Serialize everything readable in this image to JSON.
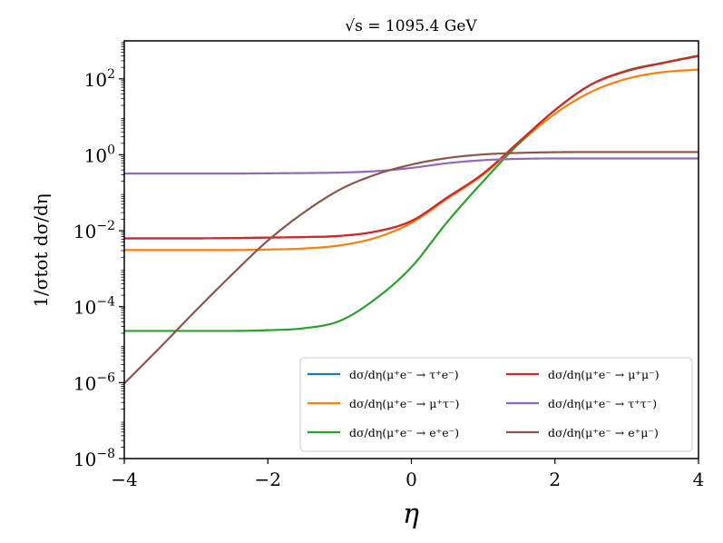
{
  "chart_data": {
    "type": "line",
    "title": "√s = 1095.4 GeV",
    "xlabel": "η",
    "ylabel": "1/σtot dσ/dη",
    "yscale": "log",
    "xlim": [
      -4,
      4
    ],
    "ylim": [
      1e-08,
      1000
    ],
    "x_ticks": [
      -4,
      -2,
      0,
      2,
      4
    ],
    "x_tick_labels": [
      "−4",
      "−2",
      "0",
      "2",
      "4"
    ],
    "y_ticks": [
      1e-08,
      1e-06,
      0.0001,
      0.01,
      1,
      100
    ],
    "y_tick_labels": [
      {
        "base": "10",
        "exp": "−8"
      },
      {
        "base": "10",
        "exp": "−6"
      },
      {
        "base": "10",
        "exp": "−4"
      },
      {
        "base": "10",
        "exp": "−2"
      },
      {
        "base": "10",
        "exp": "0"
      },
      {
        "base": "10",
        "exp": "2"
      }
    ],
    "grid": false,
    "legend_position": "lower-right",
    "x": [
      -4.0,
      -3.5,
      -3.0,
      -2.5,
      -2.0,
      -1.5,
      -1.0,
      -0.5,
      0.0,
      0.5,
      1.0,
      1.5,
      2.0,
      2.5,
      3.0,
      3.5,
      4.0
    ],
    "series": [
      {
        "name": "dσ/dη(μ⁺e⁻ → τ⁺e⁻)",
        "color": "#1f77b4",
        "values": [
          0.0063,
          0.0063,
          0.0063,
          0.0064,
          0.0066,
          0.0068,
          0.0073,
          0.0095,
          0.018,
          0.075,
          0.32,
          2.2,
          15,
          70,
          160,
          260,
          400
        ]
      },
      {
        "name": "dσ/dη(μ⁺e⁻ → μ⁺τ⁻)",
        "color": "#ff7f0e",
        "values": [
          0.0031,
          0.0031,
          0.0031,
          0.0031,
          0.0032,
          0.0034,
          0.0041,
          0.0065,
          0.016,
          0.07,
          0.3,
          2.0,
          12,
          45,
          100,
          150,
          175
        ]
      },
      {
        "name": "dσ/dη(μ⁺e⁻ → e⁺e⁻)",
        "color": "#2ca02c",
        "values": [
          2.3e-05,
          2.3e-05,
          2.3e-05,
          2.3e-05,
          2.4e-05,
          2.7e-05,
          4.2e-05,
          0.00016,
          0.0011,
          0.017,
          0.2,
          2.0,
          15,
          70,
          165,
          265,
          410
        ]
      },
      {
        "name": "dσ/dη(μ⁺e⁻ → μ⁺μ⁻)",
        "color": "#d62728",
        "values": [
          0.0063,
          0.0063,
          0.0063,
          0.0064,
          0.0066,
          0.0068,
          0.0073,
          0.0095,
          0.018,
          0.075,
          0.32,
          2.2,
          15,
          70,
          160,
          260,
          400
        ]
      },
      {
        "name": "dσ/dη(μ⁺e⁻ → τ⁺τ⁻)",
        "color": "#9467bd",
        "values": [
          0.32,
          0.32,
          0.32,
          0.32,
          0.325,
          0.33,
          0.34,
          0.37,
          0.45,
          0.6,
          0.72,
          0.78,
          0.8,
          0.8,
          0.8,
          0.8,
          0.8
        ]
      },
      {
        "name": "dσ/dη(μ⁺e⁻ → e⁺μ⁻)",
        "color": "#8c564b",
        "values": [
          9.5e-07,
          8.5e-06,
          8e-05,
          0.0007,
          0.0055,
          0.03,
          0.12,
          0.3,
          0.55,
          0.82,
          1.02,
          1.12,
          1.17,
          1.18,
          1.18,
          1.18,
          1.18
        ]
      }
    ],
    "legend_columns": [
      [
        0,
        1,
        2
      ],
      [
        3,
        4,
        5
      ]
    ]
  }
}
